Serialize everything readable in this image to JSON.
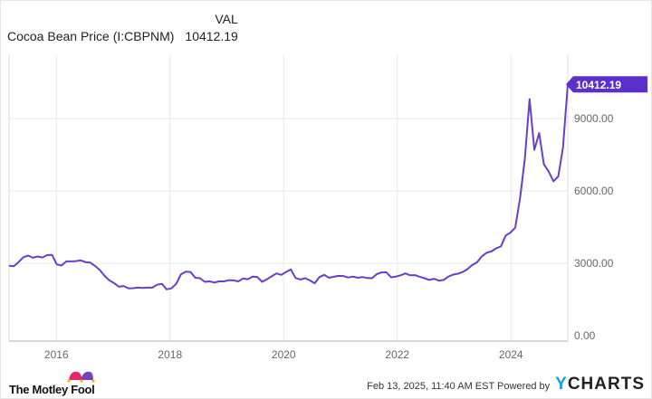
{
  "legend": {
    "header": "VAL",
    "series_name": "Cocoa Bean Price (I:CBPNM)",
    "series_value": "10412.19"
  },
  "footer": {
    "timestamp": "Feb 13, 2025, 11:40 AM EST",
    "powered_by": "Powered by",
    "brand_y": "Y",
    "brand_rest": "CHARTS",
    "logo_text": "The Motley Fool"
  },
  "colors": {
    "line": "#6a3fc8",
    "last_value_tag": "#5b2fc9",
    "grid": "#e8e8e8",
    "ycharts_accent": "#1a9fd9"
  },
  "chart_data": {
    "type": "line",
    "title": "",
    "xlabel": "",
    "ylabel": "",
    "x_ticks": [
      "2016",
      "2018",
      "2020",
      "2022",
      "2024"
    ],
    "y_ticks": [
      "0.00",
      "3000.00",
      "6000.00",
      "9000.00"
    ],
    "ylim": [
      0,
      11650
    ],
    "xlim": [
      "2015-03",
      "2025-01"
    ],
    "grid": true,
    "y_axis_side": "right",
    "last_value_label": "10412.19",
    "series": [
      {
        "name": "Cocoa Bean Price (I:CBPNM)",
        "start": "2015-03",
        "frequency": "monthly",
        "values": [
          2900,
          2880,
          3050,
          3250,
          3320,
          3230,
          3280,
          3240,
          3340,
          3350,
          2950,
          2910,
          3080,
          3080,
          3090,
          3120,
          3050,
          3030,
          2890,
          2720,
          2480,
          2290,
          2180,
          2030,
          2060,
          1960,
          1970,
          1990,
          1980,
          1990,
          1990,
          2110,
          2150,
          1920,
          1960,
          2150,
          2540,
          2650,
          2640,
          2400,
          2380,
          2230,
          2250,
          2200,
          2250,
          2250,
          2300,
          2290,
          2250,
          2370,
          2340,
          2450,
          2430,
          2230,
          2340,
          2460,
          2580,
          2520,
          2640,
          2750,
          2390,
          2330,
          2380,
          2290,
          2170,
          2430,
          2520,
          2400,
          2440,
          2480,
          2470,
          2410,
          2450,
          2400,
          2430,
          2390,
          2380,
          2550,
          2620,
          2630,
          2420,
          2450,
          2500,
          2580,
          2500,
          2510,
          2440,
          2380,
          2310,
          2360,
          2280,
          2310,
          2450,
          2530,
          2570,
          2640,
          2760,
          2930,
          3040,
          3290,
          3440,
          3490,
          3620,
          3700,
          4150,
          4270,
          4480,
          5700,
          7300,
          9800,
          7700,
          8400,
          7100,
          6800,
          6400,
          6600,
          7800,
          10412.19
        ]
      }
    ]
  }
}
